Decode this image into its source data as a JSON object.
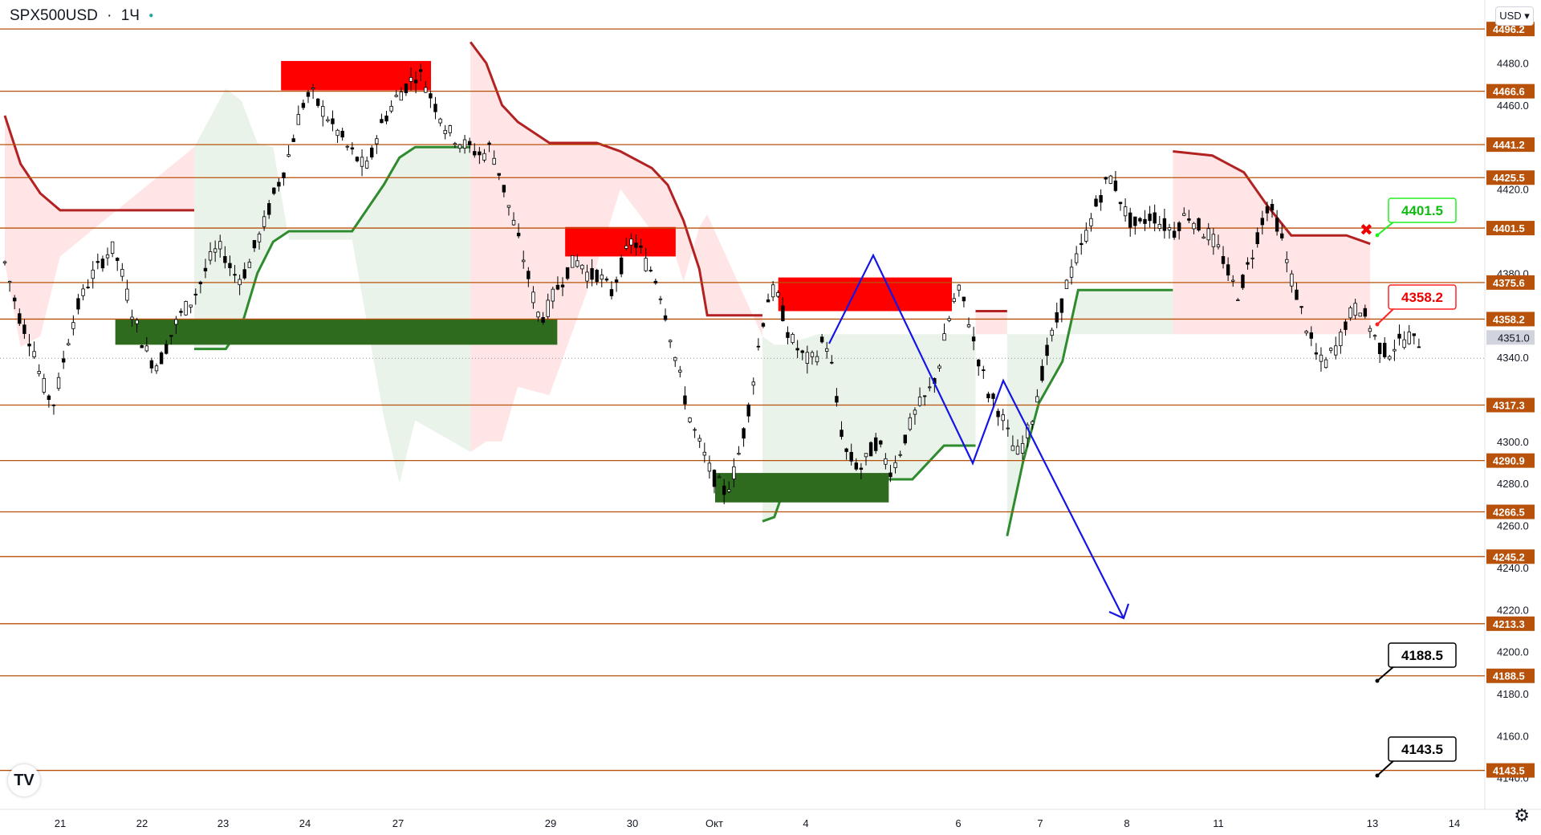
{
  "header": {
    "symbol": "SPX500USD",
    "separator": "·",
    "timeframe": "1Ч",
    "currency": "USD"
  },
  "icons": {
    "logo": "tradingview-logo-icon",
    "settings": "gear-icon",
    "currency_chevron": "chevron-down-icon"
  },
  "colors": {
    "level_line": "#b8520a",
    "level_label_bg": "#b8520a",
    "bull_candle": "#000000",
    "bear_candle": "#000000",
    "supertrend_down": "#b22222",
    "supertrend_up": "#2e8b2e",
    "zone_supply": "#ff0000",
    "zone_demand": "#2e6b1e",
    "projection": "#1515e6",
    "last_price_bg": "#d1d4dc"
  },
  "chart_data": {
    "type": "candlestick",
    "y_axis": {
      "min": 4125,
      "max": 4510,
      "ticks": [
        4480.0,
        4460.0,
        4420.0,
        4380.0,
        4340.0,
        4300.0,
        4280.0,
        4260.0,
        4240.0,
        4220.0,
        4200.0,
        4180.0,
        4160.0,
        4140.0
      ]
    },
    "x_axis": {
      "labels": [
        "21",
        "22",
        "23",
        "24",
        "27",
        "29",
        "30",
        "Окт",
        "4",
        "6",
        "7",
        "8",
        "11",
        "13",
        "14"
      ]
    },
    "levels": [
      4496.2,
      4466.6,
      4441.2,
      4425.5,
      4401.5,
      4375.6,
      4358.2,
      4317.3,
      4290.9,
      4266.5,
      4245.2,
      4213.3,
      4188.5,
      4143.5
    ],
    "last_price": 4351.0,
    "callouts": [
      {
        "label": "4401.5",
        "style": "buy"
      },
      {
        "label": "4358.2",
        "style": "sell"
      },
      {
        "label": "4188.5",
        "style": "target"
      },
      {
        "label": "4143.5",
        "style": "target"
      }
    ],
    "price_path": [
      4385,
      4372,
      4360,
      4352,
      4345,
      4330,
      4322,
      4318,
      4335,
      4350,
      4362,
      4370,
      4378,
      4382,
      4388,
      4392,
      4385,
      4372,
      4360,
      4350,
      4342,
      4336,
      4340,
      4348,
      4356,
      4362,
      4366,
      4372,
      4380,
      4388,
      4392,
      4388,
      4380,
      4378,
      4382,
      4392,
      4400,
      4410,
      4420,
      4428,
      4438,
      4452,
      4462,
      4466,
      4460,
      4456,
      4450,
      4446,
      4440,
      4436,
      4432,
      4430,
      4444,
      4452,
      4458,
      4464,
      4468,
      4472,
      4476,
      4470,
      4462,
      4456,
      4448,
      4445,
      4442,
      4440,
      4438,
      4436,
      4440,
      4432,
      4420,
      4408,
      4396,
      4384,
      4370,
      4358,
      4362,
      4370,
      4376,
      4382,
      4386,
      4384,
      4378,
      4380,
      4376,
      4370,
      4380,
      4388,
      4396,
      4392,
      4384,
      4380,
      4370,
      4356,
      4340,
      4326,
      4312,
      4302,
      4294,
      4285,
      4280,
      4276,
      4282,
      4295,
      4310,
      4330,
      4352,
      4368,
      4372,
      4362,
      4350,
      4345,
      4340,
      4338,
      4342,
      4350,
      4335,
      4310,
      4295,
      4290,
      4287,
      4292,
      4300,
      4296,
      4286,
      4290,
      4300,
      4308,
      4316,
      4320,
      4326,
      4336,
      4352,
      4366,
      4372,
      4360,
      4346,
      4334,
      4322,
      4318,
      4310,
      4300,
      4294,
      4300,
      4310,
      4326,
      4340,
      4352,
      4362,
      4376,
      4384,
      4392,
      4402,
      4412,
      4420,
      4426,
      4420,
      4410,
      4404,
      4402,
      4406,
      4408,
      4404,
      4402,
      4400,
      4406,
      4408,
      4404,
      4400,
      4398,
      4392,
      4386,
      4376,
      4370,
      4380,
      4390,
      4402,
      4412,
      4408,
      4398,
      4382,
      4372,
      4360,
      4350,
      4340,
      4336,
      4342,
      4346,
      4356,
      4362,
      4364,
      4358,
      4350,
      4344,
      4342,
      4346,
      4348,
      4350,
      4346,
      4351
    ],
    "supertrend_segments": [
      {
        "dir": "down",
        "points": [
          [
            0,
            4455
          ],
          [
            4,
            4432
          ],
          [
            9,
            4418
          ],
          [
            14,
            4410
          ],
          [
            48,
            4410
          ]
        ]
      },
      {
        "dir": "up",
        "points": [
          [
            48,
            4344
          ],
          [
            56,
            4344
          ],
          [
            60,
            4355
          ],
          [
            64,
            4380
          ],
          [
            68,
            4395
          ],
          [
            72,
            4400
          ],
          [
            88,
            4400
          ],
          [
            96,
            4422
          ],
          [
            100,
            4435
          ],
          [
            104,
            4440
          ],
          [
            118,
            4440
          ]
        ]
      },
      {
        "dir": "down",
        "points": [
          [
            118,
            4490
          ],
          [
            122,
            4480
          ],
          [
            126,
            4460
          ],
          [
            130,
            4452
          ],
          [
            138,
            4442
          ],
          [
            150,
            4442
          ],
          [
            156,
            4438
          ],
          [
            164,
            4430
          ],
          [
            168,
            4422
          ],
          [
            172,
            4405
          ],
          [
            176,
            4382
          ],
          [
            178,
            4360
          ],
          [
            192,
            4360
          ]
        ]
      },
      {
        "dir": "up",
        "points": [
          [
            192,
            4262
          ],
          [
            195,
            4264
          ],
          [
            198,
            4280
          ],
          [
            206,
            4282
          ],
          [
            230,
            4282
          ],
          [
            234,
            4290
          ],
          [
            238,
            4298
          ],
          [
            246,
            4298
          ]
        ]
      },
      {
        "dir": "down",
        "points": [
          [
            246,
            4362
          ],
          [
            254,
            4362
          ]
        ]
      },
      {
        "dir": "up",
        "points": [
          [
            254,
            4255
          ],
          [
            258,
            4290
          ],
          [
            262,
            4318
          ],
          [
            268,
            4338
          ],
          [
            272,
            4372
          ],
          [
            296,
            4372
          ]
        ]
      },
      {
        "dir": "down",
        "points": [
          [
            296,
            4438
          ],
          [
            306,
            4436
          ],
          [
            314,
            4428
          ],
          [
            320,
            4412
          ],
          [
            326,
            4398
          ],
          [
            340,
            4398
          ],
          [
            346,
            4394
          ]
        ]
      }
    ],
    "zones": [
      {
        "type": "supply",
        "x0": 70,
        "x1": 108,
        "top": 4481,
        "bottom": 4467
      },
      {
        "type": "supply",
        "x0": 142,
        "x1": 170,
        "top": 4402,
        "bottom": 4388
      },
      {
        "type": "supply",
        "x0": 196,
        "x1": 240,
        "top": 4378,
        "bottom": 4362
      },
      {
        "type": "demand",
        "x0": 28,
        "x1": 140,
        "top": 4358,
        "bottom": 4346
      },
      {
        "type": "demand",
        "x0": 180,
        "x1": 224,
        "top": 4285,
        "bottom": 4271
      }
    ],
    "projection_path": [
      [
        1033,
        428
      ],
      [
        1088,
        318
      ],
      [
        1212,
        577
      ],
      [
        1250,
        474
      ],
      [
        1400,
        770
      ]
    ],
    "title": "",
    "xlabel": "",
    "ylabel": ""
  }
}
